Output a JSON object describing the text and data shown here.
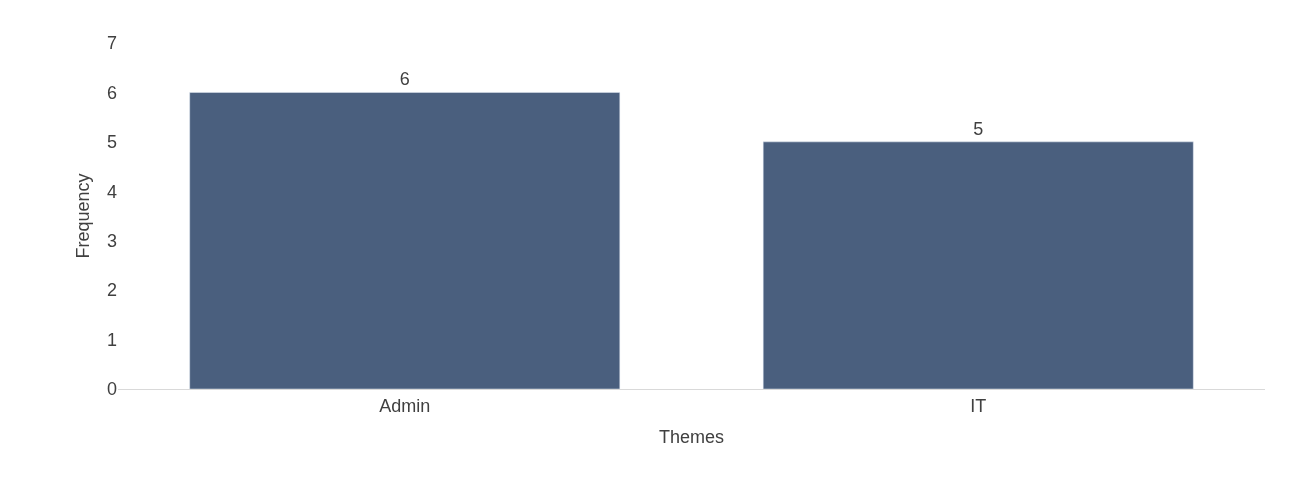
{
  "chart_data": {
    "type": "bar",
    "xlabel": "Themes",
    "ylabel": "Frequency",
    "categories": [
      "Admin",
      "IT"
    ],
    "values": [
      6,
      5
    ],
    "color": "#4a5f7e",
    "ylim": [
      0,
      7
    ],
    "yticks": [
      0,
      1,
      2,
      3,
      4,
      5,
      6,
      7
    ],
    "grid": false,
    "data_labels": true
  }
}
